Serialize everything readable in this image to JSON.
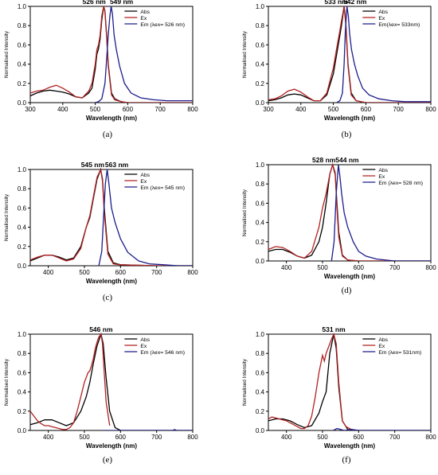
{
  "chart_data": [
    {
      "type": "line",
      "panel_label": "(a)",
      "peak_labels": [
        "526 nm",
        "549 nm"
      ],
      "xlabel": "Wavelength (nm)",
      "ylabel": "Normalised Intensity",
      "xlim": [
        300,
        800
      ],
      "ylim": [
        0,
        1.0
      ],
      "xticks": [
        300,
        400,
        500,
        600,
        700,
        800
      ],
      "yticks": [
        0.0,
        0.2,
        0.4,
        0.6,
        0.8,
        1.0
      ],
      "legend_position": "top-right",
      "series": [
        {
          "name": "Abs",
          "color": "#000000",
          "x": [
            300,
            320,
            340,
            360,
            380,
            400,
            420,
            440,
            460,
            480,
            490,
            500,
            505,
            510,
            515,
            520,
            526,
            530,
            535,
            540,
            550,
            560,
            580,
            600,
            650,
            700,
            800
          ],
          "y": [
            0.07,
            0.1,
            0.12,
            0.13,
            0.12,
            0.11,
            0.09,
            0.06,
            0.05,
            0.1,
            0.15,
            0.35,
            0.5,
            0.56,
            0.66,
            0.86,
            1.0,
            0.95,
            0.7,
            0.4,
            0.1,
            0.04,
            0.01,
            0.0,
            0.0,
            0.0,
            0.0
          ]
        },
        {
          "name": "Ex",
          "color": "#b22222",
          "x": [
            300,
            320,
            340,
            360,
            380,
            400,
            420,
            440,
            460,
            480,
            490,
            500,
            505,
            510,
            515,
            520,
            526,
            530,
            535,
            540,
            550,
            560,
            580,
            600,
            650,
            700,
            800
          ],
          "y": [
            0.1,
            0.12,
            0.13,
            0.16,
            0.18,
            0.15,
            0.11,
            0.06,
            0.05,
            0.12,
            0.2,
            0.4,
            0.55,
            0.6,
            0.7,
            0.9,
            1.0,
            0.94,
            0.68,
            0.38,
            0.08,
            0.03,
            0.01,
            0.0,
            0.0,
            0.0,
            0.0
          ]
        },
        {
          "name": "Em (λex= 526 nm)",
          "color": "#1c1c8c",
          "x": [
            500,
            510,
            520,
            530,
            535,
            540,
            545,
            549,
            553,
            558,
            565,
            575,
            590,
            610,
            640,
            680,
            720,
            760,
            800
          ],
          "y": [
            0.0,
            0.01,
            0.04,
            0.2,
            0.45,
            0.7,
            0.9,
            1.0,
            0.92,
            0.7,
            0.55,
            0.38,
            0.2,
            0.1,
            0.05,
            0.03,
            0.02,
            0.02,
            0.02
          ]
        }
      ]
    },
    {
      "type": "line",
      "panel_label": "(b)",
      "peak_labels": [
        "533 nm",
        "542 nm"
      ],
      "xlabel": "Wavelength (nm)",
      "ylabel": "Normalised Intensity",
      "xlim": [
        300,
        800
      ],
      "ylim": [
        0,
        1.0
      ],
      "xticks": [
        300,
        400,
        500,
        600,
        700,
        800
      ],
      "yticks": [
        0.0,
        0.2,
        0.4,
        0.6,
        0.8,
        1.0
      ],
      "legend_position": "top-right",
      "series": [
        {
          "name": "Abs",
          "color": "#000000",
          "x": [
            300,
            320,
            340,
            360,
            380,
            400,
            420,
            440,
            460,
            480,
            500,
            510,
            520,
            525,
            533,
            538,
            545,
            555,
            570,
            600,
            700,
            800
          ],
          "y": [
            0.02,
            0.03,
            0.05,
            0.08,
            0.09,
            0.08,
            0.05,
            0.02,
            0.02,
            0.08,
            0.3,
            0.5,
            0.7,
            0.8,
            1.0,
            0.85,
            0.4,
            0.1,
            0.02,
            0.0,
            0.0,
            0.0
          ]
        },
        {
          "name": "Ex",
          "color": "#b22222",
          "x": [
            300,
            320,
            340,
            360,
            380,
            400,
            420,
            440,
            460,
            480,
            500,
            510,
            520,
            525,
            533,
            538,
            545,
            555,
            570,
            600,
            700,
            800
          ],
          "y": [
            0.03,
            0.04,
            0.07,
            0.12,
            0.14,
            0.11,
            0.06,
            0.02,
            0.02,
            0.1,
            0.36,
            0.56,
            0.75,
            0.85,
            1.0,
            0.82,
            0.38,
            0.08,
            0.02,
            0.0,
            0.0,
            0.0
          ]
        },
        {
          "name": "Em(λex= 533nm)",
          "color": "#1c1c8c",
          "x": [
            510,
            520,
            528,
            533,
            537,
            542,
            546,
            550,
            556,
            565,
            575,
            590,
            610,
            640,
            680,
            720,
            760,
            800
          ],
          "y": [
            0.0,
            0.02,
            0.1,
            0.4,
            0.75,
            1.0,
            0.9,
            0.72,
            0.55,
            0.4,
            0.28,
            0.15,
            0.08,
            0.04,
            0.02,
            0.01,
            0.01,
            0.01
          ]
        }
      ]
    },
    {
      "type": "line",
      "panel_label": "(c)",
      "peak_labels": [
        "545 nm",
        "563 nm"
      ],
      "xlabel": "Wavelength (nm)",
      "ylabel": "Normalised Intensity",
      "xlim": [
        350,
        800
      ],
      "ylim": [
        0,
        1.0
      ],
      "xticks": [
        400,
        500,
        600,
        700,
        800
      ],
      "yticks": [
        0.0,
        0.2,
        0.4,
        0.6,
        0.8,
        1.0
      ],
      "legend_position": "top-right",
      "series": [
        {
          "name": "Abs",
          "color": "#000000",
          "x": [
            350,
            370,
            390,
            410,
            430,
            450,
            470,
            490,
            505,
            515,
            525,
            535,
            545,
            550,
            555,
            565,
            580,
            600,
            700,
            800
          ],
          "y": [
            0.05,
            0.08,
            0.11,
            0.11,
            0.09,
            0.06,
            0.08,
            0.2,
            0.4,
            0.5,
            0.7,
            0.9,
            1.0,
            0.9,
            0.6,
            0.15,
            0.03,
            0.01,
            0.0,
            0.0
          ]
        },
        {
          "name": "Ex",
          "color": "#b22222",
          "x": [
            350,
            370,
            390,
            410,
            430,
            450,
            470,
            490,
            505,
            515,
            525,
            535,
            545,
            550,
            555,
            565,
            580,
            600,
            700,
            800
          ],
          "y": [
            0.06,
            0.09,
            0.11,
            0.11,
            0.08,
            0.05,
            0.07,
            0.18,
            0.4,
            0.52,
            0.72,
            0.92,
            1.0,
            0.88,
            0.55,
            0.12,
            0.02,
            0.01,
            0.0,
            0.0
          ]
        },
        {
          "name": "Em (λex= 545 nm)",
          "color": "#1c1c8c",
          "x": [
            540,
            548,
            553,
            558,
            563,
            568,
            575,
            585,
            600,
            620,
            650,
            680,
            720,
            760,
            800
          ],
          "y": [
            0.0,
            0.15,
            0.5,
            0.85,
            1.0,
            0.85,
            0.6,
            0.45,
            0.28,
            0.14,
            0.05,
            0.02,
            0.01,
            0.0,
            0.0
          ]
        }
      ]
    },
    {
      "type": "line",
      "panel_label": "(d)",
      "peak_labels": [
        "528 nm",
        "544 nm"
      ],
      "xlabel": "Wavelength (nm)",
      "ylabel": "Normalised Intensity",
      "xlim": [
        350,
        800
      ],
      "ylim": [
        0,
        1.0
      ],
      "xticks": [
        400,
        500,
        600,
        700,
        800
      ],
      "yticks": [
        0.0,
        0.2,
        0.4,
        0.6,
        0.8,
        1.0
      ],
      "legend_position": "top-right",
      "series": [
        {
          "name": "Abs",
          "color": "#000000",
          "x": [
            350,
            370,
            390,
            410,
            430,
            450,
            470,
            490,
            500,
            510,
            520,
            528,
            535,
            540,
            545,
            555,
            570,
            600,
            700,
            800
          ],
          "y": [
            0.1,
            0.12,
            0.12,
            0.09,
            0.05,
            0.03,
            0.06,
            0.2,
            0.35,
            0.6,
            0.9,
            1.0,
            0.9,
            0.6,
            0.3,
            0.06,
            0.01,
            0.0,
            0.0,
            0.0
          ]
        },
        {
          "name": "Ex",
          "color": "#b22222",
          "x": [
            350,
            370,
            390,
            410,
            430,
            450,
            470,
            490,
            500,
            510,
            520,
            528,
            535,
            540,
            545,
            555,
            570,
            600,
            700,
            800
          ],
          "y": [
            0.12,
            0.15,
            0.14,
            0.1,
            0.05,
            0.03,
            0.1,
            0.35,
            0.55,
            0.7,
            0.9,
            1.0,
            0.92,
            0.55,
            0.25,
            0.05,
            0.01,
            0.0,
            0.0,
            0.0
          ]
        },
        {
          "name": "Em (λex= 528 nm)",
          "color": "#1c1c8c",
          "x": [
            525,
            532,
            538,
            544,
            548,
            553,
            560,
            570,
            585,
            600,
            620,
            650,
            700,
            800
          ],
          "y": [
            0.0,
            0.2,
            0.7,
            1.0,
            0.88,
            0.7,
            0.5,
            0.35,
            0.2,
            0.1,
            0.05,
            0.02,
            0.0,
            0.0
          ]
        }
      ]
    },
    {
      "type": "line",
      "panel_label": "(e)",
      "peak_labels": [
        "546 nm"
      ],
      "xlabel": "Wavelength (nm)",
      "ylabel": "Normalised Intensity",
      "xlim": [
        350,
        800
      ],
      "ylim": [
        0,
        1.0
      ],
      "xticks": [
        400,
        500,
        600,
        700,
        800
      ],
      "yticks": [
        0.0,
        0.2,
        0.4,
        0.6,
        0.8,
        1.0
      ],
      "legend_position": "top-right",
      "series": [
        {
          "name": "Abs",
          "color": "#000000",
          "x": [
            350,
            370,
            390,
            410,
            430,
            450,
            470,
            490,
            505,
            515,
            525,
            535,
            546,
            552,
            560,
            570,
            585,
            600,
            700,
            800
          ],
          "y": [
            0.06,
            0.08,
            0.11,
            0.11,
            0.08,
            0.05,
            0.08,
            0.2,
            0.35,
            0.5,
            0.7,
            0.88,
            1.0,
            0.9,
            0.55,
            0.2,
            0.03,
            0.0,
            0.0,
            0.0
          ]
        },
        {
          "name": "Ex",
          "color": "#b22222",
          "x": [
            350,
            360,
            370,
            380,
            390,
            400,
            410,
            420,
            430,
            440,
            450,
            460,
            470,
            480,
            490,
            500,
            505,
            510,
            515,
            520,
            525,
            530,
            535,
            540,
            546,
            550,
            555,
            560,
            570
          ],
          "y": [
            0.2,
            0.15,
            0.1,
            0.07,
            0.05,
            0.05,
            0.04,
            0.03,
            0.02,
            0.01,
            0.01,
            0.03,
            0.08,
            0.2,
            0.35,
            0.5,
            0.55,
            0.6,
            0.62,
            0.68,
            0.75,
            0.85,
            0.92,
            0.97,
            1.0,
            0.9,
            0.6,
            0.3,
            0.05
          ]
        },
        {
          "name": "Em (λex= 546 nm)",
          "color": "#1c1c8c",
          "x": [
            550,
            600,
            650,
            700,
            745,
            750,
            755,
            800
          ],
          "y": [
            0.0,
            0.0,
            0.0,
            0.0,
            0.0,
            0.01,
            0.0,
            0.0
          ]
        }
      ]
    },
    {
      "type": "line",
      "panel_label": "(f)",
      "peak_labels": [
        "531 nm"
      ],
      "xlabel": "Wavelength (nm)",
      "ylabel": "Normalised Intensity",
      "xlim": [
        350,
        800
      ],
      "ylim": [
        0,
        1.0
      ],
      "xticks": [
        400,
        500,
        600,
        700,
        800
      ],
      "yticks": [
        0.0,
        0.2,
        0.4,
        0.6,
        0.8,
        1.0
      ],
      "legend_position": "top-right",
      "series": [
        {
          "name": "Abs",
          "color": "#000000",
          "x": [
            350,
            370,
            390,
            410,
            430,
            450,
            470,
            490,
            500,
            510,
            520,
            531,
            538,
            545,
            555,
            570,
            600,
            700,
            800
          ],
          "y": [
            0.1,
            0.12,
            0.12,
            0.1,
            0.06,
            0.03,
            0.05,
            0.18,
            0.3,
            0.4,
            0.8,
            1.0,
            0.85,
            0.45,
            0.1,
            0.01,
            0.0,
            0.0,
            0.0
          ]
        },
        {
          "name": "Ex",
          "color": "#b22222",
          "x": [
            350,
            360,
            370,
            380,
            390,
            400,
            410,
            420,
            430,
            440,
            450,
            460,
            470,
            480,
            490,
            500,
            505,
            510,
            515,
            520,
            525,
            531,
            538,
            545,
            555,
            565,
            580,
            600
          ],
          "y": [
            0.12,
            0.14,
            0.13,
            0.12,
            0.11,
            0.1,
            0.08,
            0.06,
            0.04,
            0.02,
            0.02,
            0.05,
            0.15,
            0.35,
            0.6,
            0.78,
            0.72,
            0.8,
            0.85,
            0.9,
            0.95,
            1.0,
            0.9,
            0.5,
            0.1,
            0.04,
            0.01,
            0.0
          ]
        },
        {
          "name": "Em (λex= 531nm)",
          "color": "#1c1c8c",
          "x": [
            530,
            540,
            550,
            560,
            580,
            600,
            650,
            700,
            800
          ],
          "y": [
            0.0,
            0.02,
            0.01,
            0.0,
            0.01,
            0.0,
            0.0,
            0.0,
            0.0
          ]
        }
      ]
    }
  ]
}
